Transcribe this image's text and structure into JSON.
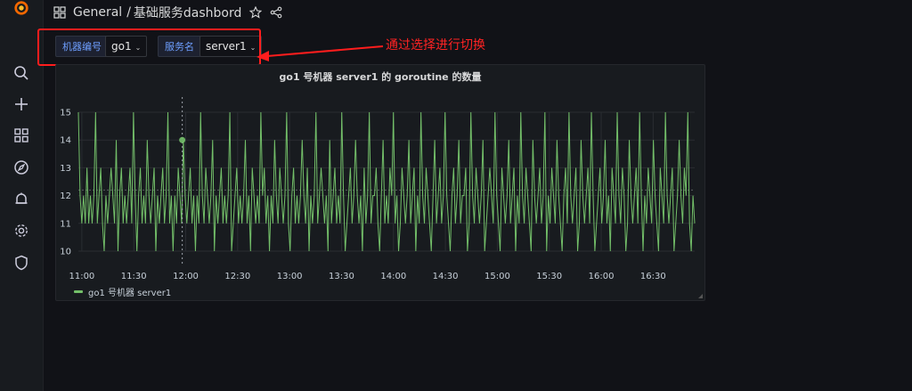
{
  "breadcrumb": {
    "folder": "General",
    "separator": "/",
    "dashboard": "基础服务dashbord"
  },
  "variables": [
    {
      "label": "机器编号",
      "value": "go1"
    },
    {
      "label": "服务名",
      "value": "server1"
    }
  ],
  "annotation": {
    "text": "通过选择进行切换",
    "color": "#ff1d1d"
  },
  "sidebar": {
    "items": [
      "search-icon",
      "plus-icon",
      "dashboards-icon",
      "explore-icon",
      "alerting-bell-icon",
      "settings-gear-icon",
      "shield-icon"
    ]
  },
  "colors": {
    "series": "#73bf69",
    "background": "#111217",
    "panel": "#181b1f",
    "variable_label": "#6e9fff"
  },
  "chart_data": {
    "type": "line",
    "title": "go1 号机器 server1 的 goroutine 的数量",
    "xlabel": "",
    "ylabel": "",
    "ylim": [
      10,
      15
    ],
    "x_ticks": [
      "11:00",
      "11:30",
      "12:00",
      "12:30",
      "13:00",
      "13:30",
      "14:00",
      "14:30",
      "15:00",
      "15:30",
      "16:00",
      "16:30"
    ],
    "y_ticks": [
      10,
      11,
      12,
      13,
      14,
      15
    ],
    "x_range": [
      "10:58",
      "16:54"
    ],
    "grid": true,
    "legend_position": "bottom-left",
    "series": [
      {
        "name": "go1 号机器 server1",
        "sampling": "~1 point per minute, roughly 357 samples oscillating between 10 and 15",
        "values": [
          15,
          12,
          11,
          12,
          11,
          13,
          11,
          12,
          11,
          12,
          15,
          11,
          12,
          13,
          11,
          10,
          12,
          11,
          12,
          13,
          12,
          11,
          14,
          10,
          12,
          13,
          11,
          12,
          11,
          12,
          13,
          11,
          15,
          12,
          10,
          12,
          13,
          11,
          12,
          11,
          14,
          12,
          11,
          12,
          13,
          10,
          12,
          11,
          12,
          13,
          11,
          12,
          15,
          11,
          12,
          10,
          12,
          11,
          13,
          12,
          11,
          14,
          12,
          11,
          12,
          13,
          11,
          12,
          10,
          12,
          11,
          15,
          12,
          11,
          13,
          12,
          11,
          12,
          14,
          10,
          12,
          11,
          12,
          13,
          11,
          12,
          11,
          12,
          15,
          10,
          11,
          12,
          13,
          11,
          12,
          11,
          12,
          14,
          11,
          12,
          10,
          13,
          12,
          11,
          12,
          11,
          15,
          12,
          13,
          11,
          12,
          10,
          12,
          11,
          14,
          12,
          11,
          13,
          12,
          11,
          12,
          15,
          11,
          10,
          12,
          13,
          11,
          12,
          11,
          12,
          14,
          12,
          11,
          13,
          10,
          12,
          11,
          12,
          15,
          11,
          12,
          13,
          12,
          11,
          12,
          10,
          14,
          11,
          12,
          13,
          11,
          12,
          11,
          15,
          12,
          10,
          11,
          12,
          13,
          11,
          12,
          14,
          12,
          11,
          12,
          10,
          13,
          11,
          12,
          15,
          11,
          12,
          12,
          13,
          11,
          10,
          12,
          14,
          11,
          12,
          11,
          13,
          12,
          15,
          11,
          12,
          10,
          11,
          13,
          12,
          11,
          12,
          14,
          11,
          12,
          13,
          10,
          12,
          11,
          15,
          12,
          11,
          13,
          12,
          11,
          10,
          12,
          14,
          11,
          12,
          13,
          11,
          12,
          15,
          12,
          11,
          10,
          12,
          13,
          11,
          12,
          14,
          11,
          12,
          12,
          13,
          10,
          11,
          15,
          12,
          11,
          13,
          12,
          11,
          12,
          14,
          10,
          11,
          12,
          13,
          12,
          11,
          15,
          12,
          11,
          10,
          13,
          12,
          11,
          12,
          14,
          11,
          12,
          13,
          10,
          12,
          11,
          15,
          12,
          11,
          13,
          12,
          11,
          10,
          14,
          12,
          11,
          12,
          13,
          11,
          12,
          15,
          10,
          12,
          11,
          13,
          12,
          11,
          14,
          12,
          11,
          10,
          12,
          13,
          11,
          15,
          12,
          11,
          12,
          13,
          10,
          11,
          14,
          12,
          11,
          12,
          13,
          11,
          15,
          12,
          10,
          11,
          12,
          13,
          11,
          12,
          14,
          11,
          12,
          10,
          13,
          12,
          11,
          15,
          12,
          11,
          13,
          12,
          10,
          11,
          14,
          12,
          11,
          12,
          13,
          11,
          15,
          12,
          10,
          12,
          11,
          13,
          12,
          11,
          14,
          12,
          11,
          10,
          13,
          12,
          11,
          15,
          12,
          11,
          12,
          13,
          10,
          11,
          12,
          14,
          12,
          11,
          13,
          12,
          15,
          11,
          10,
          12,
          11
        ]
      }
    ]
  }
}
